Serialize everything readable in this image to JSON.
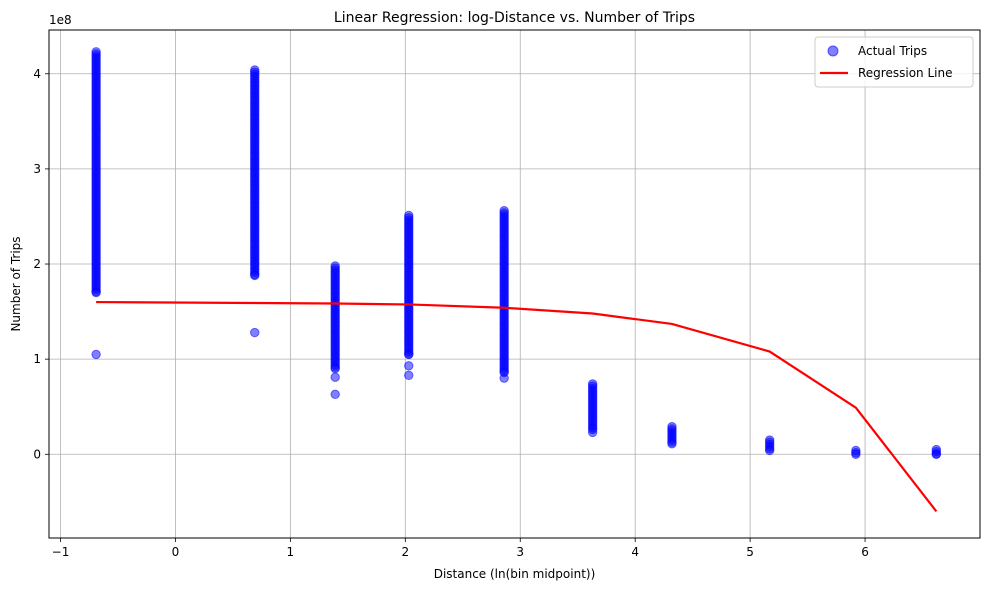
{
  "chart_data": {
    "type": "scatter",
    "title": "Linear Regression: log-Distance vs. Number of Trips",
    "xlabel": "Distance (ln(bin midpoint))",
    "ylabel": "Number of Trips",
    "y_offset_label": "1e8",
    "xlim": [
      -1.1,
      7.0
    ],
    "ylim": [
      -0.88,
      4.46
    ],
    "x_ticks": [
      -1,
      0,
      1,
      2,
      3,
      4,
      5,
      6
    ],
    "y_ticks": [
      0,
      1,
      2,
      3,
      4
    ],
    "grid": true,
    "legend_position": "top-right",
    "series": [
      {
        "name": "Actual Trips",
        "kind": "scatter",
        "color": "#0000ff",
        "clusters": [
          {
            "x": -0.69,
            "y_min": 1.7,
            "y_max": 4.23,
            "outliers": [
              1.05
            ]
          },
          {
            "x": 0.69,
            "y_min": 1.88,
            "y_max": 4.04,
            "outliers": [
              1.28
            ]
          },
          {
            "x": 1.39,
            "y_min": 0.9,
            "y_max": 1.98,
            "outliers": [
              0.81,
              0.63
            ]
          },
          {
            "x": 2.03,
            "y_min": 1.05,
            "y_max": 2.51,
            "outliers": [
              0.93,
              0.83
            ]
          },
          {
            "x": 2.86,
            "y_min": 0.86,
            "y_max": 2.56,
            "outliers": [
              0.8
            ]
          },
          {
            "x": 3.63,
            "y_min": 0.26,
            "y_max": 0.74,
            "outliers": [
              0.23
            ]
          },
          {
            "x": 4.32,
            "y_min": 0.11,
            "y_max": 0.29,
            "outliers": []
          },
          {
            "x": 5.17,
            "y_min": 0.04,
            "y_max": 0.15,
            "outliers": []
          },
          {
            "x": 5.92,
            "y_min": 0.0,
            "y_max": 0.04,
            "outliers": []
          },
          {
            "x": 6.62,
            "y_min": 0.0,
            "y_max": 0.05,
            "outliers": []
          }
        ]
      },
      {
        "name": "Regression Line",
        "kind": "line",
        "color": "#ff0000",
        "x": [
          -0.69,
          0.69,
          1.39,
          2.03,
          2.86,
          3.63,
          4.32,
          5.17,
          5.92,
          6.62
        ],
        "y": [
          1.6,
          1.59,
          1.585,
          1.575,
          1.54,
          1.48,
          1.37,
          1.08,
          0.49,
          -0.6
        ]
      }
    ]
  }
}
